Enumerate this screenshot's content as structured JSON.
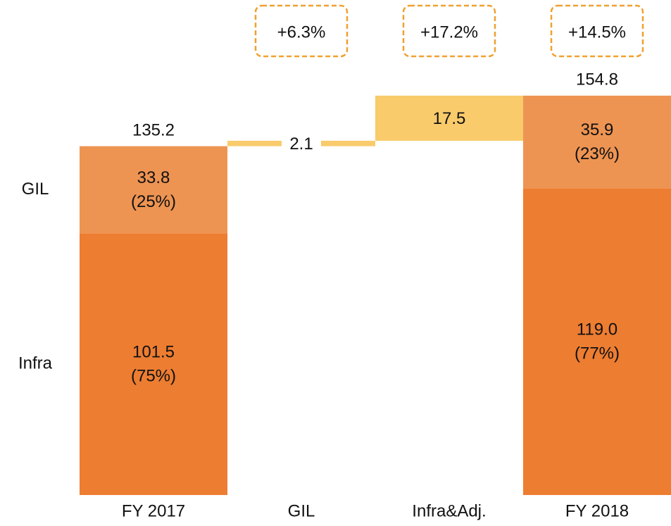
{
  "chart_data": {
    "type": "waterfall",
    "categories": [
      "FY 2017",
      "GIL",
      "Infra&Adj.",
      "FY 2018"
    ],
    "series": [
      {
        "name": "Infra",
        "color": "#ed7d31",
        "values": [
          101.5,
          null,
          null,
          119.0
        ],
        "value_labels": [
          "101.5",
          null,
          null,
          "119.0"
        ],
        "share_labels": [
          "(75%)",
          null,
          null,
          "(77%)"
        ]
      },
      {
        "name": "GIL",
        "color": "#ee9452",
        "values": [
          33.8,
          null,
          null,
          35.9
        ],
        "share_labels": [
          "(25%)",
          null,
          null,
          "(23%)"
        ]
      }
    ],
    "changes": {
      "color": "#f9cb6b",
      "values": [
        null,
        2.1,
        17.5,
        null
      ]
    },
    "totals": [
      135.2,
      null,
      null,
      154.8
    ],
    "growth_labels": [
      null,
      "+6.3%",
      "+17.2%",
      "+14.5%"
    ],
    "growth_box_color": "#f0a030",
    "ylim": [
      0,
      192
    ]
  }
}
